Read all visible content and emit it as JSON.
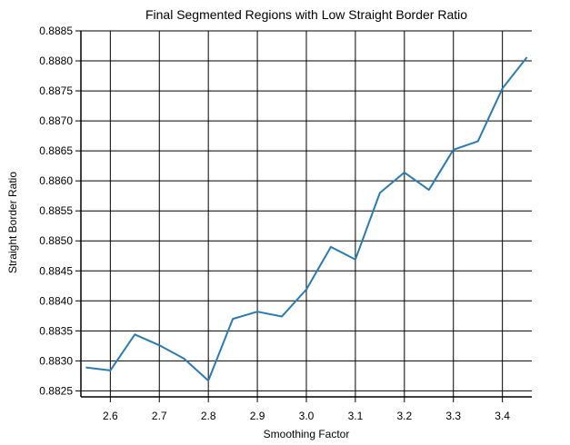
{
  "chart_data": {
    "type": "line",
    "title": "Final Segmented Regions with Low Straight Border Ratio",
    "xlabel": "Smoothing Factor",
    "ylabel": "Straight Border Ratio",
    "xlim": [
      2.54,
      3.46
    ],
    "ylim": [
      0.8824,
      0.8885
    ],
    "x_ticks": [
      2.6,
      2.7,
      2.8,
      2.9,
      3.0,
      3.1,
      3.2,
      3.3,
      3.4
    ],
    "x_tick_labels": [
      "2.6",
      "2.7",
      "2.8",
      "2.9",
      "3.0",
      "3.1",
      "3.2",
      "3.3",
      "3.4"
    ],
    "y_ticks": [
      0.8825,
      0.883,
      0.8835,
      0.884,
      0.8845,
      0.885,
      0.8855,
      0.886,
      0.8865,
      0.887,
      0.8875,
      0.888,
      0.8885
    ],
    "y_tick_labels": [
      "0.8825",
      "0.8830",
      "0.8835",
      "0.8840",
      "0.8845",
      "0.8850",
      "0.8855",
      "0.8860",
      "0.8865",
      "0.8870",
      "0.8875",
      "0.8880",
      "0.8885"
    ],
    "grid": true,
    "series": [
      {
        "color": "#2b7bb0",
        "x": [
          2.55,
          2.6,
          2.65,
          2.7,
          2.75,
          2.8,
          2.85,
          2.9,
          2.95,
          3.0,
          3.05,
          3.1,
          3.15,
          3.2,
          3.25,
          3.3,
          3.35,
          3.4,
          3.45
        ],
        "y": [
          0.88289,
          0.88284,
          0.88344,
          0.88326,
          0.88304,
          0.88267,
          0.8837,
          0.88382,
          0.88374,
          0.88419,
          0.8849,
          0.88469,
          0.8858,
          0.88614,
          0.88585,
          0.88652,
          0.88666,
          0.88754,
          0.88806
        ]
      }
    ]
  }
}
